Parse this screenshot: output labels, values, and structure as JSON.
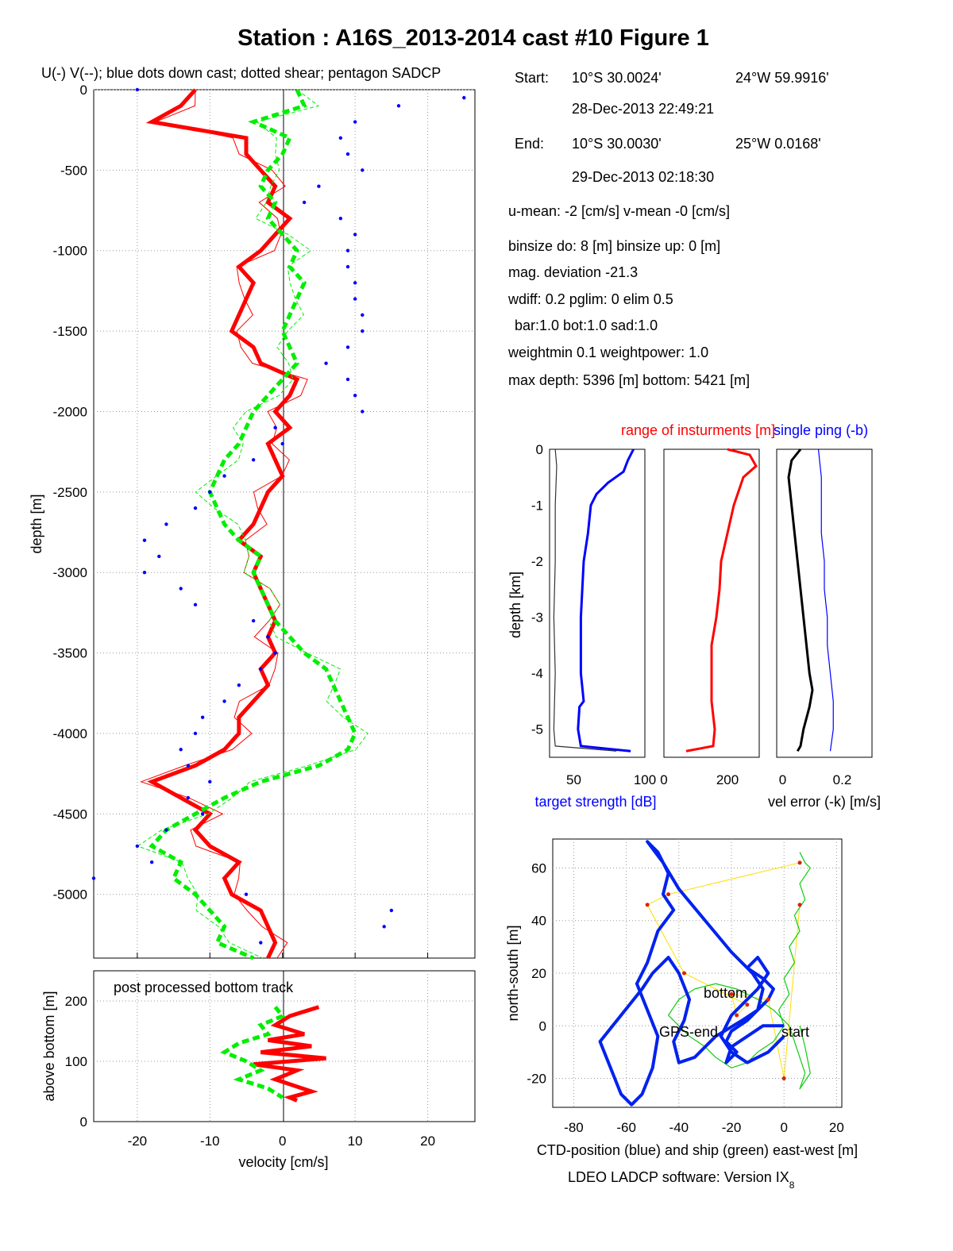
{
  "title": "Station : A16S_2013-2014 cast #10  Figure 1",
  "colors": {
    "u": "#ff0000",
    "v": "#00ee00",
    "sadcp": "#0000ff",
    "ctd": "#0022ee",
    "ship": "#11cc11",
    "gps": "#ffdd00",
    "axis": "#000000"
  },
  "info": {
    "start_label": "Start:",
    "start_lat": "10°S 30.0024'",
    "start_lon": "24°W 59.9916'",
    "start_time": "28-Dec-2013 22:49:21",
    "end_label": "End:",
    "end_lat": "10°S 30.0030'",
    "end_lon": "25°W  0.0168'",
    "end_time": "29-Dec-2013 02:18:30",
    "means": "u-mean:  -2 [cm/s]    v-mean  -0 [cm/s]",
    "binsize": "binsize do: 8 [m]  binsize up:  0 [m]",
    "magdev": "mag. deviation -21.3",
    "wdiff": "wdiff: 0.2  pglim: 0  elim 0.5",
    "bar": "bar:1.0 bot:1.0 sad:1.0",
    "weight": "weightmin 0.1  weightpower: 1.0",
    "depths": "max depth: 5396 [m]   bottom: 5421 [m]"
  },
  "footer": {
    "software_main": "LDEO LADCP software: Version IX",
    "software_sub": "8"
  },
  "chart_data": [
    {
      "id": "velocity_profile",
      "type": "line",
      "title": "U(-) V(--); blue dots down cast; dotted shear; pentagon SADCP",
      "xlabel": "",
      "ylabel": "depth [m]",
      "xlim": [
        -26,
        26.5
      ],
      "ylim": [
        -5396,
        0
      ],
      "xticks": [
        -20,
        -10,
        0,
        10,
        20
      ],
      "yticks": [
        0,
        -500,
        -1000,
        -1500,
        -2000,
        -2500,
        -3000,
        -3500,
        -4000,
        -4500,
        -5000
      ],
      "grid": true,
      "series": [
        {
          "name": "U",
          "color": "#ff0000",
          "style": "solid-thick",
          "depth": [
            0,
            -100,
            -200,
            -300,
            -400,
            -500,
            -600,
            -700,
            -800,
            -900,
            -1000,
            -1100,
            -1200,
            -1300,
            -1400,
            -1500,
            -1600,
            -1700,
            -1800,
            -1900,
            -2000,
            -2100,
            -2200,
            -2300,
            -2400,
            -2500,
            -2600,
            -2700,
            -2800,
            -2900,
            -3000,
            -3100,
            -3200,
            -3300,
            -3400,
            -3500,
            -3600,
            -3700,
            -3800,
            -3900,
            -4000,
            -4100,
            -4200,
            -4300,
            -4400,
            -4500,
            -4600,
            -4700,
            -4800,
            -4900,
            -5000,
            -5100,
            -5200,
            -5300,
            -5396
          ],
          "values": [
            -12,
            -14,
            -18,
            -5,
            -5,
            -3,
            -1,
            -2,
            1,
            -1,
            -3,
            -6,
            -4,
            -5,
            -6,
            -7,
            -4,
            -3,
            2,
            1,
            -1,
            1,
            -2,
            -1,
            0,
            -2,
            -3,
            -4,
            -6,
            -3,
            -4,
            -3,
            -2,
            -1,
            -2,
            -1,
            -3,
            -2,
            -4,
            -6,
            -6,
            -8,
            -12,
            -18,
            -14,
            -10,
            -12,
            -10,
            -6,
            -8,
            -7,
            -3,
            -2,
            -1,
            -2
          ]
        },
        {
          "name": "V",
          "color": "#00ee00",
          "style": "dashed-thick",
          "depth": [
            0,
            -100,
            -200,
            -300,
            -400,
            -500,
            -600,
            -700,
            -800,
            -900,
            -1000,
            -1100,
            -1200,
            -1300,
            -1400,
            -1500,
            -1600,
            -1700,
            -1800,
            -1900,
            -2000,
            -2100,
            -2200,
            -2300,
            -2400,
            -2500,
            -2600,
            -2700,
            -2800,
            -2900,
            -3000,
            -3100,
            -3200,
            -3300,
            -3400,
            -3500,
            -3600,
            -3700,
            -3800,
            -3900,
            -4000,
            -4100,
            -4200,
            -4300,
            -4400,
            -4500,
            -4600,
            -4700,
            -4800,
            -4900,
            -5000,
            -5100,
            -5200,
            -5300,
            -5396
          ],
          "values": [
            2,
            3,
            -4,
            1,
            0,
            -2,
            -3,
            -1,
            -2,
            0,
            2,
            1,
            3,
            2,
            1,
            0,
            1,
            2,
            0,
            -2,
            -4,
            -5,
            -6,
            -8,
            -9,
            -10,
            -9,
            -8,
            -6,
            -3,
            -4,
            -3,
            -2,
            -1,
            1,
            3,
            6,
            7,
            8,
            9,
            10,
            9,
            5,
            -3,
            -8,
            -12,
            -16,
            -18,
            -14,
            -15,
            -12,
            -10,
            -8,
            -9,
            -4
          ]
        },
        {
          "name": "SADCP",
          "color": "#0000ff",
          "style": "dots",
          "depth": [
            0,
            -50,
            -100,
            -200,
            -300,
            -400,
            -500,
            -600,
            -700,
            -800,
            -900,
            -1000,
            -1100,
            -1200,
            -1300,
            -1400,
            -1500,
            -1600,
            -1700,
            -1800,
            -1900,
            -2000,
            -2100,
            -2200,
            -2300,
            -2400,
            -2500,
            -2600,
            -2700,
            -2800,
            -2900,
            -3000,
            -3100,
            -3200,
            -3300,
            -3400,
            -3500,
            -3600,
            -3700,
            -3800,
            -3900,
            -4000,
            -4100,
            -4200,
            -4300,
            -4400,
            -4500,
            -4600,
            -4700,
            -4800,
            -4900,
            -5000,
            -5100,
            -5200,
            -5300
          ],
          "values": [
            -20,
            25,
            16,
            10,
            8,
            9,
            11,
            5,
            3,
            8,
            10,
            9,
            9,
            10,
            10,
            11,
            11,
            9,
            6,
            9,
            10,
            11,
            -1,
            0,
            -4,
            -8,
            -10,
            -12,
            -16,
            -19,
            -17,
            -19,
            -14,
            -12,
            -4,
            -2,
            -1,
            -3,
            -6,
            -8,
            -11,
            -12,
            -14,
            -13,
            -10,
            -13,
            -11,
            -16,
            -20,
            -18,
            -26,
            -5,
            15,
            14,
            -3
          ]
        }
      ]
    },
    {
      "id": "bottom_track",
      "type": "line",
      "title": "post processed bottom track",
      "xlabel": "velocity [cm/s]",
      "ylabel": "above bottom [m]",
      "xlim": [
        -26,
        26.5
      ],
      "ylim": [
        0,
        250
      ],
      "xticks": [
        -20,
        -10,
        0,
        10,
        20
      ],
      "yticks": [
        0,
        100,
        200
      ],
      "grid": true,
      "series": [
        {
          "name": "U",
          "color": "#ff0000",
          "style": "solid-thick",
          "height": [
            190,
            175,
            160,
            145,
            135,
            125,
            115,
            105,
            95,
            85,
            70,
            50,
            40,
            35
          ],
          "values": [
            5,
            1,
            -1,
            3,
            -2,
            4,
            -3,
            6,
            -4,
            2,
            -1,
            4,
            1,
            2
          ]
        },
        {
          "name": "V",
          "color": "#00ee00",
          "style": "dashed-thick",
          "height": [
            190,
            175,
            160,
            145,
            130,
            115,
            100,
            85,
            70,
            55,
            40
          ],
          "values": [
            -1,
            0,
            -3,
            -2,
            -6,
            -8,
            -5,
            -3,
            -6,
            -2,
            0
          ]
        }
      ]
    },
    {
      "id": "target_strength",
      "type": "line",
      "xlabel": "target strength [dB]",
      "ylabel": "depth [km]",
      "xlim": [
        33,
        100
      ],
      "ylim": [
        -5.5,
        0
      ],
      "xticks": [
        50,
        100
      ],
      "yticks": [
        0,
        -1,
        -2,
        -3,
        -4,
        -5
      ],
      "series": [
        {
          "name": "target strength",
          "color": "#0000ff",
          "depth": [
            0,
            -0.2,
            -0.4,
            -0.6,
            -0.8,
            -1.0,
            -1.5,
            -2.0,
            -2.5,
            -3.0,
            -3.5,
            -4.0,
            -4.5,
            -4.6,
            -5.0,
            -5.3,
            -5.39
          ],
          "values": [
            92,
            88,
            85,
            74,
            66,
            62,
            60,
            57,
            56,
            55,
            55,
            55,
            57,
            54,
            53,
            55,
            90
          ]
        },
        {
          "name": "noise",
          "color": "#333333",
          "depth": [
            0,
            -0.3,
            -1.0,
            -2.0,
            -3.0,
            -4.0,
            -5.0,
            -5.3,
            -5.39
          ],
          "values": [
            37,
            38,
            37,
            37,
            36,
            37,
            36,
            37,
            80
          ]
        }
      ]
    },
    {
      "id": "range",
      "type": "line",
      "title": "range of insturments [m]",
      "xlim": [
        0,
        300
      ],
      "ylim": [
        -5.5,
        0
      ],
      "xticks": [
        0,
        200
      ],
      "series": [
        {
          "name": "range",
          "color": "#ff0000",
          "depth": [
            0,
            -0.1,
            -0.3,
            -0.5,
            -1.0,
            -1.5,
            -2.0,
            -2.5,
            -3.0,
            -3.5,
            -4.0,
            -4.5,
            -5.0,
            -5.3,
            -5.39
          ],
          "values": [
            200,
            270,
            290,
            250,
            220,
            200,
            180,
            175,
            165,
            150,
            150,
            150,
            160,
            155,
            70
          ]
        }
      ]
    },
    {
      "id": "vel_error",
      "type": "line",
      "title": "single ping (-b)",
      "xlabel": "vel error (-k) [m/s]",
      "xlim": [
        -0.02,
        0.3
      ],
      "ylim": [
        -5.5,
        0
      ],
      "xticks": [
        0,
        0.2
      ],
      "series": [
        {
          "name": "vel error",
          "color": "#000000",
          "depth": [
            0,
            -0.2,
            -0.5,
            -1.0,
            -1.5,
            -2.0,
            -2.5,
            -3.0,
            -3.5,
            -4.0,
            -4.3,
            -4.6,
            -5.0,
            -5.3,
            -5.39
          ],
          "values": [
            0.06,
            0.03,
            0.02,
            0.03,
            0.04,
            0.05,
            0.06,
            0.07,
            0.08,
            0.09,
            0.1,
            0.09,
            0.07,
            0.06,
            0.05
          ]
        },
        {
          "name": "single ping",
          "color": "#0000ff",
          "depth": [
            0,
            -0.5,
            -1.0,
            -1.5,
            -2.0,
            -2.5,
            -3.0,
            -3.5,
            -4.0,
            -4.5,
            -5.0,
            -5.39
          ],
          "values": [
            0.12,
            0.13,
            0.13,
            0.13,
            0.14,
            0.14,
            0.15,
            0.15,
            0.16,
            0.17,
            0.17,
            0.16
          ]
        }
      ]
    },
    {
      "id": "positions",
      "type": "line",
      "xlabel": "CTD-position (blue) and ship (green) east-west [m]",
      "ylabel": "north-south [m]",
      "xlim": [
        -88,
        22
      ],
      "ylim": [
        -31,
        71
      ],
      "xticks": [
        -80,
        -60,
        -40,
        -20,
        0,
        20
      ],
      "yticks": [
        -20,
        0,
        20,
        40,
        60
      ],
      "annotations": [
        "bottom",
        "GPS-end",
        "start"
      ],
      "series": [
        {
          "name": "CTD-position",
          "color": "#0022ee",
          "x": [
            0,
            -8,
            -14,
            -20,
            -22,
            -18,
            -22,
            -20,
            -14,
            -10,
            -8,
            -12,
            -20,
            -30,
            -40,
            -46,
            -52,
            -48,
            -44,
            -46,
            -42,
            -48,
            -52,
            -56,
            -52,
            -48,
            -50,
            -54,
            -58,
            -62,
            -66,
            -70,
            -62,
            -54,
            -50,
            -44,
            -40,
            -36,
            -38,
            -42,
            -40,
            -34,
            -26,
            -16,
            -10,
            -6,
            -4,
            -8,
            -14,
            -10,
            -6,
            -10,
            -16,
            -20,
            -24,
            -20,
            -14,
            -6,
            0
          ],
          "y": [
            0,
            0,
            -4,
            -8,
            -14,
            -10,
            -6,
            -2,
            2,
            6,
            14,
            20,
            28,
            40,
            52,
            62,
            70,
            66,
            58,
            50,
            44,
            36,
            24,
            16,
            6,
            -4,
            -16,
            -26,
            -30,
            -26,
            -16,
            -6,
            4,
            14,
            20,
            26,
            20,
            10,
            2,
            -6,
            -14,
            -12,
            -4,
            2,
            6,
            10,
            14,
            18,
            22,
            26,
            20,
            14,
            8,
            4,
            -4,
            -10,
            -14,
            -10,
            -4
          ]
        },
        {
          "name": "ship",
          "color": "#11cc11",
          "x": [
            6,
            8,
            10,
            6,
            8,
            4,
            6,
            2,
            4,
            0,
            2,
            -2,
            0,
            -4,
            -10,
            -14,
            -20,
            -26,
            -30,
            -36,
            -40,
            -44,
            -40,
            -34,
            -26,
            -18,
            -10,
            -4,
            2,
            4,
            6,
            8,
            6,
            10,
            8,
            6
          ],
          "y": [
            66,
            62,
            60,
            54,
            48,
            42,
            36,
            30,
            24,
            18,
            12,
            6,
            0,
            -6,
            -10,
            -14,
            -16,
            -12,
            -8,
            -4,
            0,
            4,
            10,
            14,
            16,
            14,
            10,
            6,
            0,
            -6,
            -12,
            -18,
            -24,
            -18,
            -8,
            0
          ]
        },
        {
          "name": "GPS",
          "color": "#ffdd00",
          "x": [
            6,
            -44,
            -52,
            -38,
            -14,
            -18,
            -20,
            -6,
            0,
            6
          ],
          "y": [
            62,
            50,
            46,
            20,
            8,
            4,
            12,
            10,
            -20,
            46
          ]
        }
      ]
    }
  ]
}
